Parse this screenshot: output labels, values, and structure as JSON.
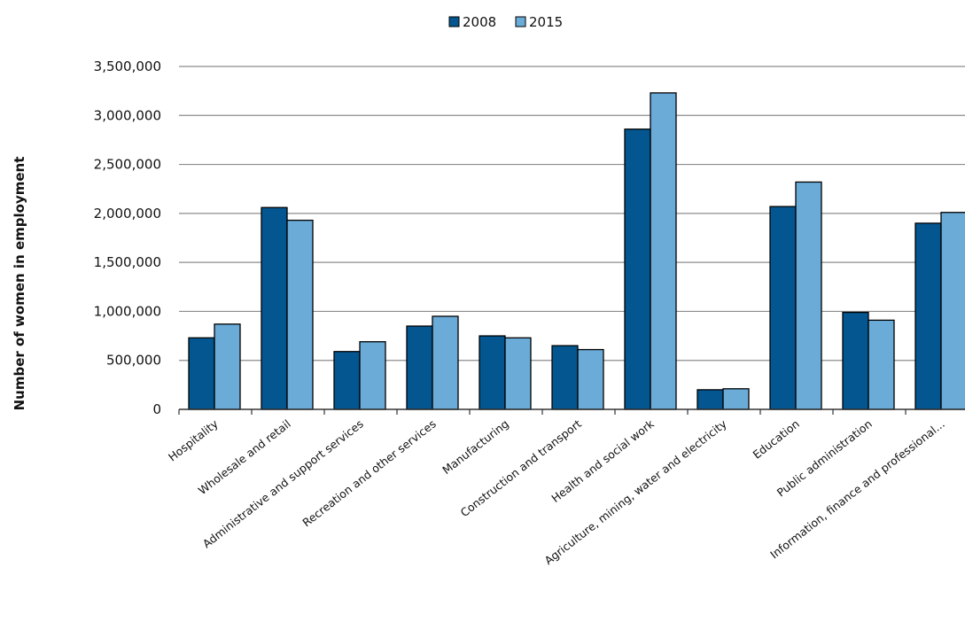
{
  "chart_data": {
    "type": "bar",
    "title": "",
    "xlabel": "",
    "ylabel": "Number of women in employment",
    "ylim": [
      0,
      3500000
    ],
    "yticks": [
      0,
      500000,
      1000000,
      1500000,
      2000000,
      2500000,
      3000000,
      3500000
    ],
    "ytick_labels": [
      "0",
      "500,000",
      "1,000,000",
      "1,500,000",
      "2,000,000",
      "2,500,000",
      "3,000,000",
      "3,500,000"
    ],
    "grid": true,
    "legend_position": "top-center",
    "categories": [
      "Hospitality",
      "Wholesale and retail",
      "Administrative and support services",
      "Recreation and other services",
      "Manufacturing",
      "Construction and transport",
      "Health and social work",
      "Agriculture, mining, water and electricity",
      "Education",
      "Public administration",
      "Information, finance and professional..."
    ],
    "series": [
      {
        "name": "2008",
        "color": "#03568f",
        "values": [
          730000,
          2060000,
          590000,
          850000,
          750000,
          650000,
          2860000,
          200000,
          2070000,
          990000,
          1900000
        ]
      },
      {
        "name": "2015",
        "color": "#6aabd8",
        "values": [
          870000,
          1930000,
          690000,
          950000,
          730000,
          610000,
          3230000,
          210000,
          2320000,
          910000,
          2010000
        ]
      }
    ]
  }
}
